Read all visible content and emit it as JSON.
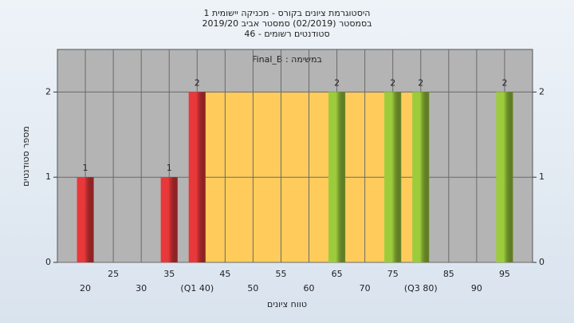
{
  "chart_data": {
    "type": "bar",
    "title": [
      "היסטוגרמת ציונים בקורס - מכניקה יישומית 1",
      "בסמסטר (02/2019) סמסטר אביב 2019/20",
      "סטודנטים רשומים - 46"
    ],
    "subtitle": "Final_B : במשימה",
    "x_label": "טווח ציונים",
    "y_label": "מספר סטודנטים",
    "x": [
      20,
      35,
      40,
      65,
      75,
      80,
      95
    ],
    "values": [
      1,
      1,
      2,
      2,
      2,
      2,
      2
    ],
    "colors": [
      "#e8383a",
      "#e8383a",
      "#e8383a",
      "#9ccc3c",
      "#9ccc3c",
      "#9ccc3c",
      "#9ccc3c"
    ],
    "box": {
      "x": [
        40,
        80
      ],
      "height": 2,
      "color": "#ffcc5c"
    },
    "xlim": [
      15,
      100
    ],
    "xticks": [
      20,
      25,
      30,
      35,
      {
        "value": 40,
        "label": "(Q1 40)"
      },
      45,
      50,
      55,
      60,
      65,
      70,
      75,
      {
        "value": 80,
        "label": "(Q3 80)"
      },
      85,
      90,
      95
    ],
    "ylim": [
      0,
      2.5
    ],
    "yticks": [
      0,
      1,
      2
    ],
    "grid": true
  }
}
